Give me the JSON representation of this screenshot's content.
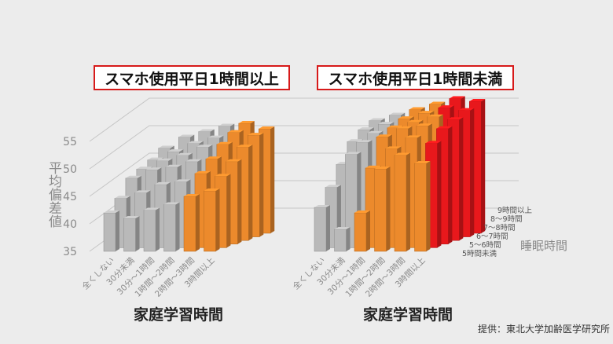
{
  "chart_data": {
    "type": "bar",
    "y_axis": {
      "label": "平均偏差値",
      "ticks": [
        35,
        40,
        45,
        50,
        55
      ],
      "ylim": [
        35,
        57
      ]
    },
    "x_axis_label": "家庭学習時間",
    "depth_axis_label": "睡眠時間",
    "study_categories": [
      "全くしない",
      "30分未満",
      "30分～1時間",
      "1時間～2時間",
      "2時間～3時間",
      "3時間以上"
    ],
    "sleep_categories": [
      "5時間未満",
      "5～6時間",
      "6～7時間",
      "7～8時間",
      "8～9時間",
      "9時間以上"
    ],
    "panels": [
      {
        "title": "スマホ使用平日1時間以上",
        "x_title": "家庭学習時間",
        "values": [
          [
            42,
            41,
            42.5,
            43.5,
            45,
            46
          ],
          [
            44,
            45,
            46.5,
            47,
            48.5,
            48
          ],
          [
            47,
            48.5,
            49,
            50,
            50.5,
            50
          ],
          [
            48,
            49.5,
            50.5,
            52,
            52.5,
            52
          ],
          [
            49,
            50.5,
            52,
            53,
            54,
            53.5
          ],
          [
            50.5,
            52.5,
            53.5,
            54.5,
            55,
            54
          ]
        ]
      },
      {
        "title": "スマホ使用平日1時間未満",
        "x_title": "家庭学習時間",
        "values": [
          [
            43,
            39,
            42,
            50,
            52.5,
            51
          ],
          [
            46,
            52,
            49.5,
            53,
            55,
            54
          ],
          [
            49.5,
            53.5,
            54.5,
            56,
            56.5,
            56
          ],
          [
            53,
            54.5,
            55.5,
            56.5,
            57.5,
            57
          ],
          [
            54.5,
            55.5,
            56.5,
            57.5,
            58.5,
            58
          ],
          [
            55.5,
            56.5,
            57.5,
            58.5,
            59.5,
            59
          ]
        ]
      }
    ],
    "colors": {
      "gray": "#b9b9b9",
      "orange": "#ec8a2c",
      "red": "#e8181c",
      "grid": "#c6c6c6",
      "label": "#8a8a8a"
    },
    "legend": "none"
  },
  "source": "提供：東北大学加齢医学研究所"
}
